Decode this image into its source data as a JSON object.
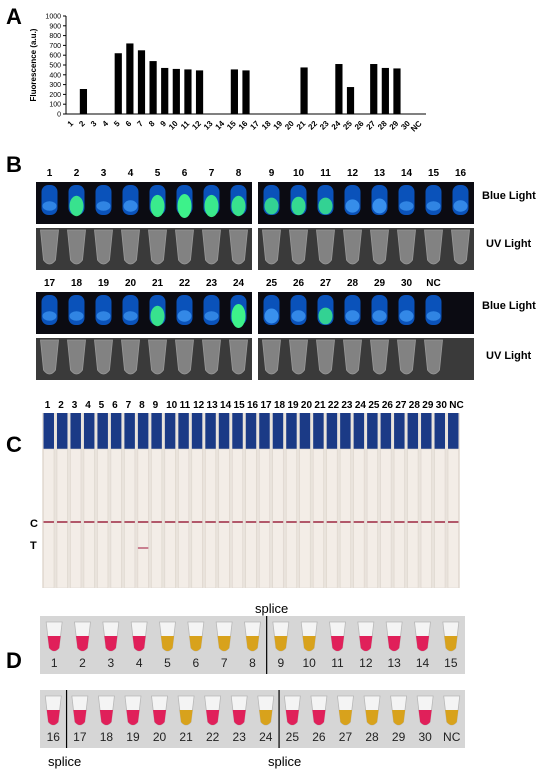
{
  "panels": {
    "a": "A",
    "b": "B",
    "c": "C",
    "d": "D"
  },
  "chart_data": {
    "type": "bar",
    "ylabel": "Fluorescence (a.u.)",
    "ylim": [
      0,
      1000
    ],
    "yticks": [
      0,
      100,
      200,
      300,
      400,
      500,
      600,
      700,
      800,
      900,
      1000
    ],
    "categories": [
      "1",
      "2",
      "3",
      "4",
      "5",
      "6",
      "7",
      "8",
      "9",
      "10",
      "11",
      "12",
      "13",
      "14",
      "15",
      "16",
      "17",
      "18",
      "19",
      "20",
      "21",
      "22",
      "23",
      "24",
      "25",
      "26",
      "27",
      "28",
      "29",
      "30",
      "NC"
    ],
    "values": [
      0,
      255,
      0,
      0,
      620,
      720,
      650,
      540,
      470,
      460,
      455,
      445,
      0,
      0,
      455,
      445,
      0,
      0,
      0,
      0,
      475,
      0,
      0,
      510,
      275,
      0,
      510,
      470,
      465,
      0,
      0
    ]
  },
  "panel_b": {
    "blue_light": "Blue Light",
    "uv_light": "UV Light",
    "row1_left": [
      "1",
      "2",
      "3",
      "4",
      "5",
      "6",
      "7",
      "8"
    ],
    "row1_right": [
      "9",
      "10",
      "11",
      "12",
      "13",
      "14",
      "15",
      "16"
    ],
    "row2_left": [
      "17",
      "18",
      "19",
      "20",
      "21",
      "22",
      "23",
      "24"
    ],
    "row2_right": [
      "25",
      "26",
      "27",
      "28",
      "29",
      "30",
      "NC"
    ],
    "glow_row1": [
      0.2,
      0.8,
      0.2,
      0.3,
      0.9,
      1.0,
      0.9,
      0.8,
      0.6,
      0.7,
      0.6,
      0.4,
      0.5,
      0.2,
      0.2,
      0.3
    ],
    "glow_row2": [
      0.2,
      0.2,
      0.2,
      0.2,
      0.8,
      0.3,
      0.2,
      1.0,
      0.5,
      0.3,
      0.6,
      0.3,
      0.3,
      0.3,
      0.2
    ]
  },
  "panel_c": {
    "numbers": [
      "1",
      "2",
      "3",
      "4",
      "5",
      "6",
      "7",
      "8",
      "9",
      "10",
      "11",
      "12",
      "13",
      "14",
      "15",
      "16",
      "17",
      "18",
      "19",
      "20",
      "21",
      "22",
      "23",
      "24",
      "25",
      "26",
      "27",
      "28",
      "29",
      "30",
      "NC"
    ],
    "c_label": "C",
    "t_label": "T",
    "t_line_strips": [
      7
    ]
  },
  "panel_d": {
    "splice": "splice",
    "row1_labels": [
      "1",
      "2",
      "3",
      "4",
      "5",
      "6",
      "7",
      "8",
      "9",
      "10",
      "11",
      "12",
      "13",
      "14",
      "15"
    ],
    "row1_colors": [
      "pink",
      "pink",
      "pink",
      "pink",
      "yellow",
      "yellow",
      "yellow",
      "yellow",
      "yellow",
      "yellow",
      "pink",
      "pink",
      "pink",
      "pink",
      "yellow"
    ],
    "row2_labels": [
      "16",
      "17",
      "18",
      "19",
      "20",
      "21",
      "22",
      "23",
      "24",
      "25",
      "26",
      "27",
      "28",
      "29",
      "30",
      "NC"
    ],
    "row2_colors": [
      "pink",
      "pink",
      "pink",
      "pink",
      "pink",
      "yellow",
      "pink",
      "pink",
      "yellow",
      "pink",
      "pink",
      "yellow",
      "yellow",
      "yellow",
      "pink",
      "yellow"
    ],
    "colors": {
      "pink": "#e0205a",
      "yellow": "#d8a21c"
    }
  }
}
